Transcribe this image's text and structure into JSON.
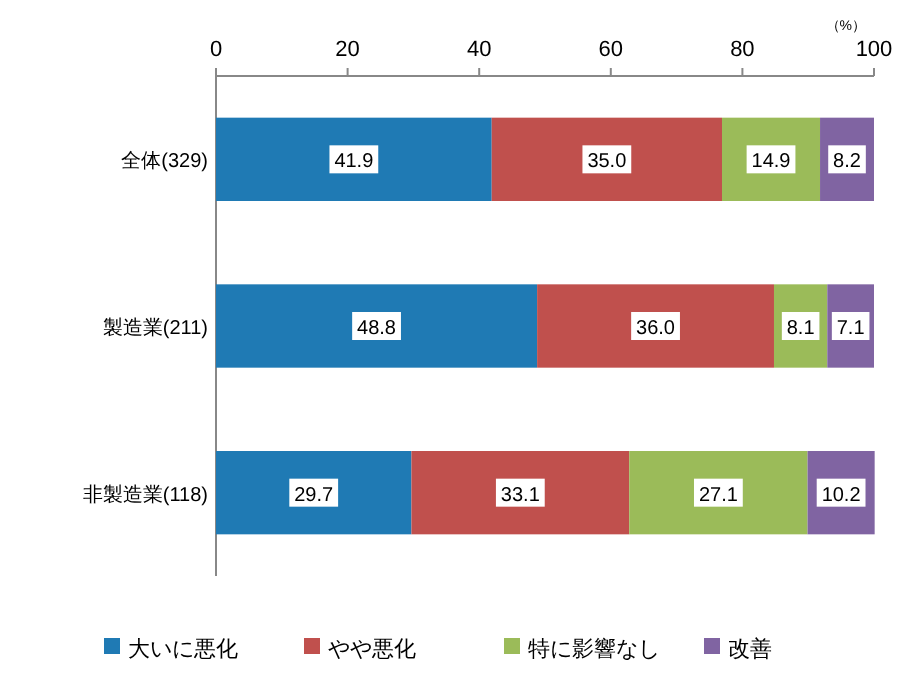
{
  "chart_data": {
    "type": "bar",
    "orientation": "horizontal",
    "stacked": true,
    "categories": [
      "全体(329)",
      "製造業(211)",
      "非製造業(118)"
    ],
    "series": [
      {
        "name": "大いに悪化",
        "color": "#1f7ab4",
        "values": [
          41.9,
          48.8,
          29.7
        ],
        "value_labels": [
          "41.9",
          "48.8",
          "29.7"
        ]
      },
      {
        "name": "やや悪化",
        "color": "#c0504d",
        "values": [
          35.0,
          36.0,
          33.1
        ],
        "value_labels": [
          "35.0",
          "36.0",
          "33.1"
        ]
      },
      {
        "name": "特に影響なし",
        "color": "#9bbb59",
        "values": [
          14.9,
          8.1,
          27.1
        ],
        "value_labels": [
          "14.9",
          "8.1",
          "27.1"
        ]
      },
      {
        "name": "改善",
        "color": "#8064a2",
        "values": [
          8.2,
          7.1,
          10.2
        ],
        "value_labels": [
          "8.2",
          "7.1",
          "10.2"
        ]
      }
    ],
    "xlim": [
      0,
      100
    ],
    "xticks": [
      0,
      20,
      40,
      60,
      80,
      100
    ],
    "annotations": [
      "（%）"
    ],
    "legend": "bottom",
    "grid": false
  }
}
